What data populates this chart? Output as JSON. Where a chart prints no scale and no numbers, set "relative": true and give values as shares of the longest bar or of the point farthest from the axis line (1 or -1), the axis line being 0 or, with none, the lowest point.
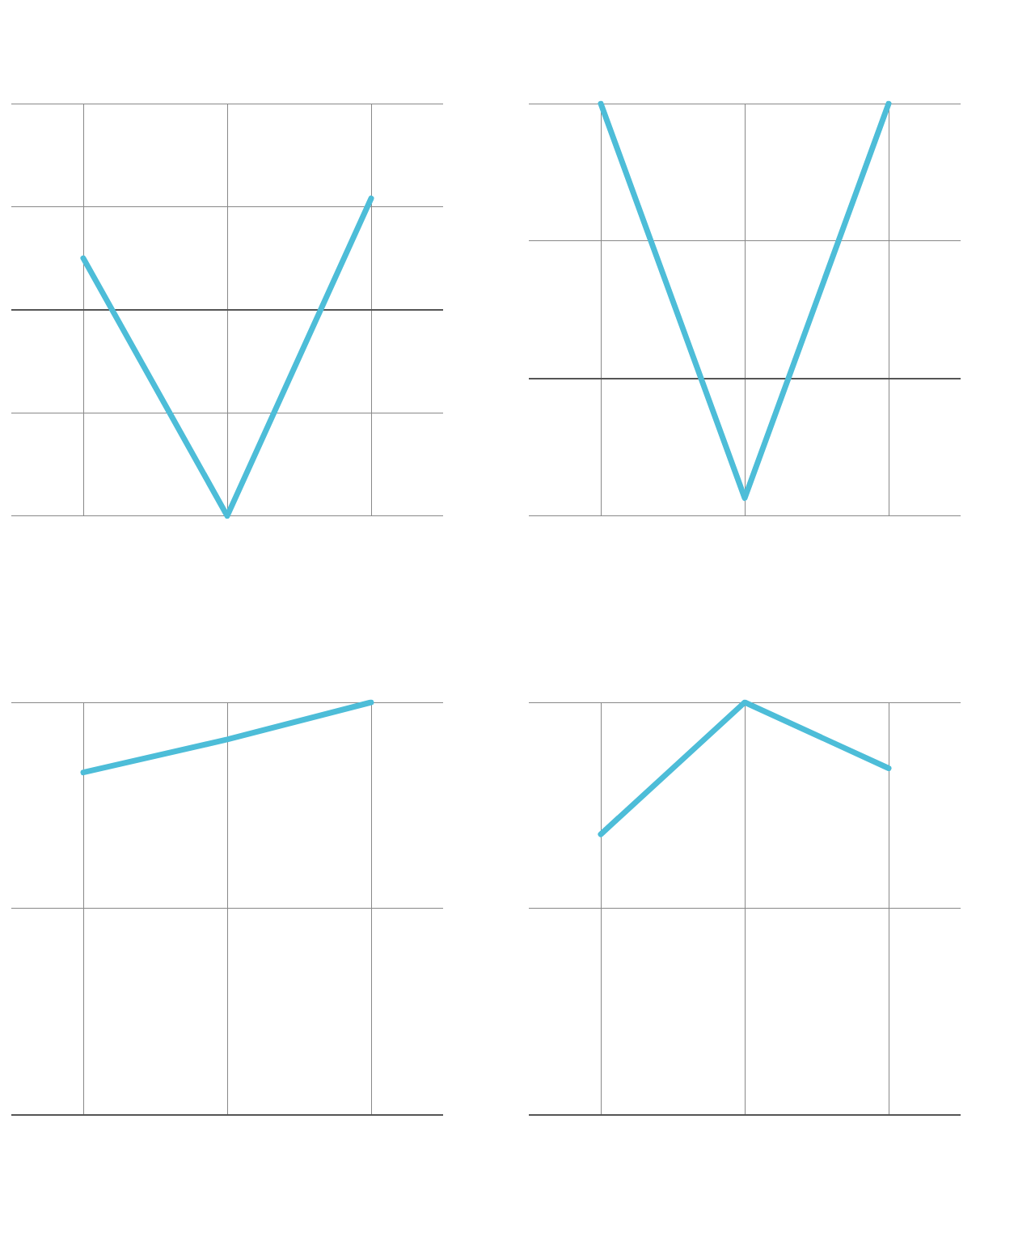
{
  "chart_data": [
    {
      "type": "line",
      "categories": [
        null,
        null,
        null
      ],
      "values": [
        0.25,
        -1,
        0.54
      ],
      "color": "#4dbdd8",
      "relative": true,
      "grid": true,
      "marker": "none"
    },
    {
      "type": "line",
      "categories": [
        null,
        null,
        null
      ],
      "values": [
        1,
        -0.435,
        1
      ],
      "color": "#4dbdd8",
      "relative": true,
      "grid": true,
      "marker": "none"
    },
    {
      "type": "line",
      "categories": [
        null,
        null,
        null
      ],
      "values": [
        0.83,
        0.91,
        1
      ],
      "color": "#4dbdd8",
      "relative": true,
      "grid": true,
      "marker": "none"
    },
    {
      "type": "line",
      "categories": [
        null,
        null,
        null
      ],
      "values": [
        0.68,
        1,
        0.84
      ],
      "color": "#4dbdd8",
      "relative": true,
      "grid": true,
      "marker": "none"
    }
  ]
}
